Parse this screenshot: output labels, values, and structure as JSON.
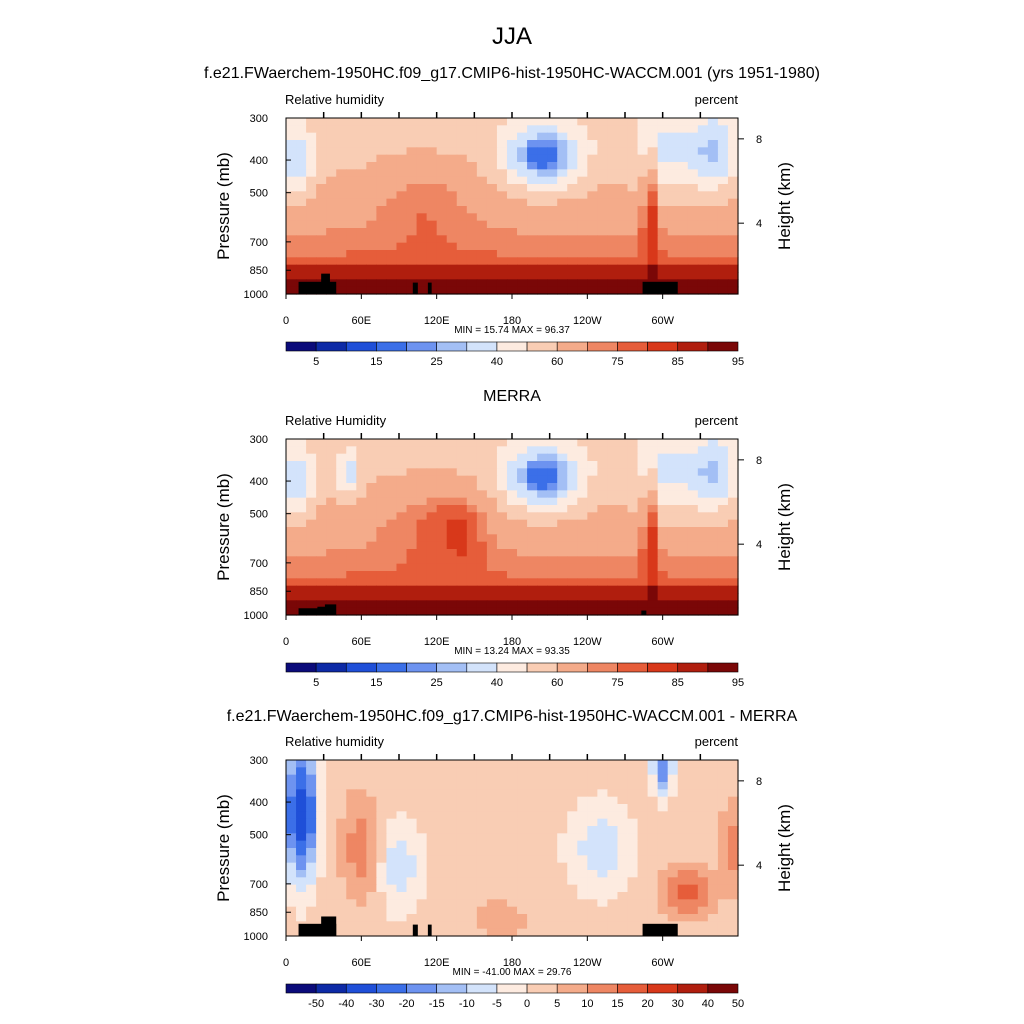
{
  "figure": {
    "title": "JJA"
  },
  "colors": {
    "abs": [
      "#0b0b7a",
      "#0d2aa6",
      "#1f4fd8",
      "#3b6fe8",
      "#6d93f0",
      "#a3bff5",
      "#d3e3fb",
      "#fdebe0",
      "#f9cdb4",
      "#f4ab8a",
      "#ee8663",
      "#e65d3a",
      "#d8381a",
      "#b01e0e",
      "#7a0707"
    ],
    "diff": [
      "#0b0b7a",
      "#0d2aa6",
      "#1f4fd8",
      "#3b6fe8",
      "#6d93f0",
      "#a3bff5",
      "#d3e3fb",
      "#fdebe0",
      "#f9cdb4",
      "#f4ab8a",
      "#ee8663",
      "#e65d3a",
      "#d8381a",
      "#b01e0e",
      "#7a0707"
    ],
    "topography": "#000000"
  },
  "chart_data": [
    {
      "type": "heatmap",
      "title": "f.e21.FWaerchem-1950HC.f09_g17.CMIP6-hist-1950HC-WACCM.001 (yrs 1951-1980)",
      "left_label": "Relative humidity",
      "right_label": "percent",
      "ylabel": "Pressure (mb)",
      "y2label": "Height (km)",
      "xticks": [
        "0",
        "60E",
        "120E",
        "180",
        "120W",
        "60W"
      ],
      "yticks": [
        "300",
        "400",
        "500",
        "700",
        "850",
        "1000"
      ],
      "y2ticks": [
        "8",
        "4"
      ],
      "stats": "MIN =  15.74  MAX =  96.37",
      "colorbar_labels": [
        "5",
        "15",
        "25",
        "40",
        "60",
        "75",
        "85",
        "95"
      ],
      "ylim": [
        1000,
        300
      ],
      "xlim": [
        0,
        360
      ]
    },
    {
      "type": "heatmap",
      "title": "MERRA",
      "left_label": "Relative Humidity",
      "right_label": "percent",
      "ylabel": "Pressure (mb)",
      "y2label": "Height (km)",
      "xticks": [
        "0",
        "60E",
        "120E",
        "180",
        "120W",
        "60W"
      ],
      "yticks": [
        "300",
        "400",
        "500",
        "700",
        "850",
        "1000"
      ],
      "y2ticks": [
        "8",
        "4"
      ],
      "stats": "MIN =  13.24  MAX =  93.35",
      "colorbar_labels": [
        "5",
        "15",
        "25",
        "40",
        "60",
        "75",
        "85",
        "95"
      ],
      "ylim": [
        1000,
        300
      ],
      "xlim": [
        0,
        360
      ]
    },
    {
      "type": "heatmap",
      "title": "f.e21.FWaerchem-1950HC.f09_g17.CMIP6-hist-1950HC-WACCM.001 - MERRA",
      "left_label": "Relative humidity",
      "right_label": "percent",
      "ylabel": "Pressure (mb)",
      "y2label": "Height (km)",
      "xticks": [
        "0",
        "60E",
        "120E",
        "180",
        "120W",
        "60W"
      ],
      "yticks": [
        "300",
        "400",
        "500",
        "700",
        "850",
        "1000"
      ],
      "y2ticks": [
        "8",
        "4"
      ],
      "stats": "MIN = -41.00  MAX =  29.76",
      "colorbar_labels": [
        "-50",
        "-40",
        "-30",
        "-20",
        "-15",
        "-10",
        "-5",
        "0",
        "5",
        "10",
        "15",
        "20",
        "30",
        "40",
        "50"
      ],
      "ylim": [
        1000,
        300
      ],
      "xlim": [
        0,
        360
      ]
    }
  ]
}
